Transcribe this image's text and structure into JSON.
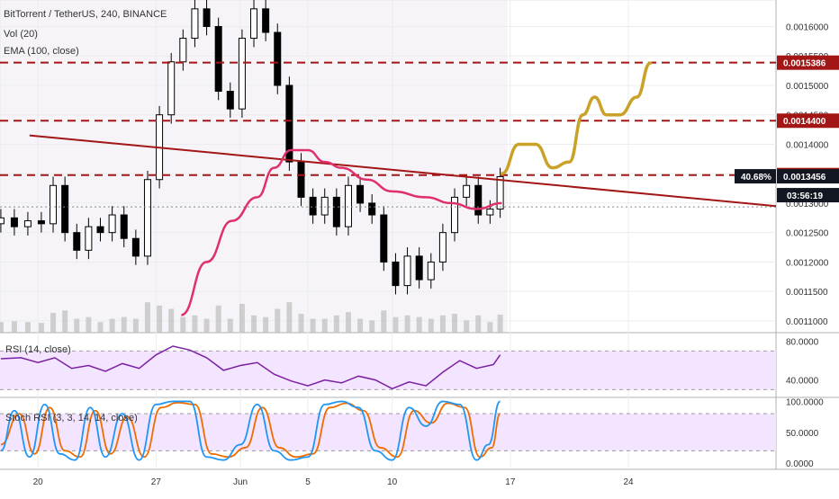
{
  "chart_data": {
    "type": "candlestick",
    "title": "BitTorrent / TetherUS, 240, BINANCE",
    "legend_lines": [
      "Vol (20)",
      "EMA (100, close)"
    ],
    "price_axis_ticks": [
      "0.0016000",
      "0.0015500",
      "0.0015000",
      "0.0014500",
      "0.0014000",
      "0.0013500",
      "0.0013000",
      "0.0012500",
      "0.0012000",
      "0.0011500",
      "0.0011000"
    ],
    "price_range": [
      0.00108,
      0.001645
    ],
    "price_markers": [
      {
        "label": "0.0015386",
        "value": 0.0015386,
        "style": "dark-red"
      },
      {
        "label": "0.0014400",
        "value": 0.00144,
        "style": "dark-red"
      },
      {
        "label": "0.0013477",
        "value": 0.0013477,
        "style": "dark-red"
      },
      {
        "label": "0.0013456",
        "value": 0.0013456,
        "style": "black"
      }
    ],
    "percent_badge": "40.68%",
    "countdown": "03:56:19",
    "x_axis_labels": [
      {
        "label": "20",
        "day": 20
      },
      {
        "label": "27",
        "day": 27
      },
      {
        "label": "Jun",
        "day": 32
      },
      {
        "label": "5",
        "day": 36
      },
      {
        "label": "10",
        "day": 41
      },
      {
        "label": "17",
        "day": 48
      },
      {
        "label": "24",
        "day": 55
      }
    ],
    "x_range_days": [
      17.75,
      63.75
    ],
    "last_candle_day": 47.4,
    "candles": [
      {
        "day": 17.8,
        "open": 0.001265,
        "close": 0.001275
      },
      {
        "day": 18.6,
        "open": 0.001275,
        "close": 0.00126
      },
      {
        "day": 19.4,
        "open": 0.00126,
        "close": 0.00127
      },
      {
        "day": 20.2,
        "open": 0.00127,
        "close": 0.001265
      },
      {
        "day": 20.9,
        "open": 0.001265,
        "close": 0.00133
      },
      {
        "day": 21.6,
        "open": 0.00133,
        "close": 0.00125
      },
      {
        "day": 22.3,
        "open": 0.00125,
        "close": 0.00122
      },
      {
        "day": 23.0,
        "open": 0.00122,
        "close": 0.00126
      },
      {
        "day": 23.7,
        "open": 0.00126,
        "close": 0.00125
      },
      {
        "day": 24.4,
        "open": 0.00125,
        "close": 0.00128
      },
      {
        "day": 25.1,
        "open": 0.00128,
        "close": 0.00124
      },
      {
        "day": 25.8,
        "open": 0.00124,
        "close": 0.00121
      },
      {
        "day": 26.5,
        "open": 0.00121,
        "close": 0.00134
      },
      {
        "day": 27.2,
        "open": 0.00134,
        "close": 0.00145
      },
      {
        "day": 27.9,
        "open": 0.00145,
        "close": 0.00154
      },
      {
        "day": 28.6,
        "open": 0.00154,
        "close": 0.00158
      },
      {
        "day": 29.3,
        "open": 0.00158,
        "close": 0.00163
      },
      {
        "day": 30.0,
        "open": 0.00163,
        "close": 0.0016
      },
      {
        "day": 30.7,
        "open": 0.0016,
        "close": 0.00149
      },
      {
        "day": 31.4,
        "open": 0.00149,
        "close": 0.00146
      },
      {
        "day": 32.1,
        "open": 0.00146,
        "close": 0.00158
      },
      {
        "day": 32.8,
        "open": 0.00158,
        "close": 0.00163
      },
      {
        "day": 33.5,
        "open": 0.00163,
        "close": 0.00159
      },
      {
        "day": 34.2,
        "open": 0.00159,
        "close": 0.0015
      },
      {
        "day": 34.9,
        "open": 0.0015,
        "close": 0.00137
      },
      {
        "day": 35.6,
        "open": 0.00137,
        "close": 0.00131
      },
      {
        "day": 36.3,
        "open": 0.00131,
        "close": 0.00128
      },
      {
        "day": 37.0,
        "open": 0.00128,
        "close": 0.00131
      },
      {
        "day": 37.7,
        "open": 0.00131,
        "close": 0.00126
      },
      {
        "day": 38.4,
        "open": 0.00126,
        "close": 0.00133
      },
      {
        "day": 39.1,
        "open": 0.00133,
        "close": 0.0013
      },
      {
        "day": 39.8,
        "open": 0.0013,
        "close": 0.00128
      },
      {
        "day": 40.5,
        "open": 0.00128,
        "close": 0.0012
      },
      {
        "day": 41.2,
        "open": 0.0012,
        "close": 0.00116
      },
      {
        "day": 41.9,
        "open": 0.00116,
        "close": 0.00121
      },
      {
        "day": 42.6,
        "open": 0.00121,
        "close": 0.00117
      },
      {
        "day": 43.3,
        "open": 0.00117,
        "close": 0.0012
      },
      {
        "day": 44.0,
        "open": 0.0012,
        "close": 0.00125
      },
      {
        "day": 44.7,
        "open": 0.00125,
        "close": 0.00131
      },
      {
        "day": 45.4,
        "open": 0.00131,
        "close": 0.00133
      },
      {
        "day": 46.1,
        "open": 0.00133,
        "close": 0.00128
      },
      {
        "day": 46.8,
        "open": 0.00128,
        "close": 0.00129
      },
      {
        "day": 47.4,
        "open": 0.00129,
        "close": 0.001345
      }
    ],
    "ema_line": [
      {
        "day": 28.5,
        "value": 0.00111
      },
      {
        "day": 30.0,
        "value": 0.0012
      },
      {
        "day": 31.5,
        "value": 0.00127
      },
      {
        "day": 33.0,
        "value": 0.00131
      },
      {
        "day": 34.0,
        "value": 0.00136
      },
      {
        "day": 35.0,
        "value": 0.00139
      },
      {
        "day": 36.0,
        "value": 0.00139
      },
      {
        "day": 37.0,
        "value": 0.00137
      },
      {
        "day": 38.0,
        "value": 0.00136
      },
      {
        "day": 39.5,
        "value": 0.00134
      },
      {
        "day": 41.0,
        "value": 0.00132
      },
      {
        "day": 43.0,
        "value": 0.00131
      },
      {
        "day": 44.5,
        "value": 0.0013
      },
      {
        "day": 46.0,
        "value": 0.00129
      },
      {
        "day": 47.5,
        "value": 0.0013
      }
    ],
    "trendline": {
      "start": {
        "day": 19.5,
        "value": 0.001415
      },
      "end": {
        "day": 63.75,
        "value": 0.001295
      }
    },
    "projection_path": [
      {
        "day": 47.5,
        "value": 0.00135
      },
      {
        "day": 48.5,
        "value": 0.0014
      },
      {
        "day": 49.5,
        "value": 0.0014
      },
      {
        "day": 50.5,
        "value": 0.00136
      },
      {
        "day": 51.5,
        "value": 0.00137
      },
      {
        "day": 52.3,
        "value": 0.00145
      },
      {
        "day": 53.0,
        "value": 0.00148
      },
      {
        "day": 53.7,
        "value": 0.00145
      },
      {
        "day": 54.5,
        "value": 0.00145
      },
      {
        "day": 55.5,
        "value": 0.00148
      },
      {
        "day": 56.3,
        "value": 0.001538
      }
    ],
    "rsi": {
      "label": "RSI (14, close)",
      "ticks": [
        "80.0000",
        "40.0000"
      ],
      "range": [
        22,
        88
      ],
      "bands": [
        70,
        30
      ],
      "values": [
        {
          "day": 17.8,
          "value": 62
        },
        {
          "day": 19.0,
          "value": 63
        },
        {
          "day": 20.0,
          "value": 58
        },
        {
          "day": 21.0,
          "value": 63
        },
        {
          "day": 22.0,
          "value": 52
        },
        {
          "day": 23.0,
          "value": 55
        },
        {
          "day": 24.0,
          "value": 49
        },
        {
          "day": 25.0,
          "value": 57
        },
        {
          "day": 26.0,
          "value": 52
        },
        {
          "day": 27.0,
          "value": 66
        },
        {
          "day": 28.0,
          "value": 75
        },
        {
          "day": 29.0,
          "value": 71
        },
        {
          "day": 30.0,
          "value": 63
        },
        {
          "day": 31.0,
          "value": 50
        },
        {
          "day": 32.0,
          "value": 55
        },
        {
          "day": 33.0,
          "value": 58
        },
        {
          "day": 34.0,
          "value": 46
        },
        {
          "day": 35.0,
          "value": 39
        },
        {
          "day": 36.0,
          "value": 34
        },
        {
          "day": 37.0,
          "value": 40
        },
        {
          "day": 38.0,
          "value": 37
        },
        {
          "day": 39.0,
          "value": 44
        },
        {
          "day": 40.0,
          "value": 40
        },
        {
          "day": 41.0,
          "value": 31
        },
        {
          "day": 42.0,
          "value": 38
        },
        {
          "day": 43.0,
          "value": 34
        },
        {
          "day": 44.0,
          "value": 48
        },
        {
          "day": 45.0,
          "value": 60
        },
        {
          "day": 46.0,
          "value": 52
        },
        {
          "day": 47.0,
          "value": 56
        },
        {
          "day": 47.4,
          "value": 66
        }
      ]
    },
    "stoch_rsi": {
      "label": "Stoch RSI (3, 3, 14, 14, close)",
      "ticks": [
        "100.0000",
        "50.0000",
        "0.0000"
      ],
      "range": [
        -10,
        105
      ],
      "bands": [
        80,
        20
      ],
      "k_values": [
        {
          "day": 17.8,
          "value": 20
        },
        {
          "day": 18.6,
          "value": 85
        },
        {
          "day": 19.5,
          "value": 10
        },
        {
          "day": 20.4,
          "value": 95
        },
        {
          "day": 21.3,
          "value": 15
        },
        {
          "day": 22.2,
          "value": 5
        },
        {
          "day": 23.1,
          "value": 90
        },
        {
          "day": 24.0,
          "value": 10
        },
        {
          "day": 25.0,
          "value": 80
        },
        {
          "day": 26.0,
          "value": 5
        },
        {
          "day": 27.0,
          "value": 95
        },
        {
          "day": 28.0,
          "value": 100
        },
        {
          "day": 29.0,
          "value": 100
        },
        {
          "day": 30.0,
          "value": 10
        },
        {
          "day": 31.0,
          "value": 5
        },
        {
          "day": 32.0,
          "value": 30
        },
        {
          "day": 33.0,
          "value": 95
        },
        {
          "day": 34.0,
          "value": 20
        },
        {
          "day": 35.0,
          "value": 5
        },
        {
          "day": 36.0,
          "value": 10
        },
        {
          "day": 37.0,
          "value": 95
        },
        {
          "day": 38.0,
          "value": 100
        },
        {
          "day": 39.0,
          "value": 90
        },
        {
          "day": 40.0,
          "value": 20
        },
        {
          "day": 41.0,
          "value": 5
        },
        {
          "day": 42.0,
          "value": 90
        },
        {
          "day": 43.0,
          "value": 60
        },
        {
          "day": 44.0,
          "value": 100
        },
        {
          "day": 45.0,
          "value": 95
        },
        {
          "day": 46.0,
          "value": 5
        },
        {
          "day": 46.7,
          "value": 30
        },
        {
          "day": 47.4,
          "value": 100
        }
      ],
      "d_values": [
        {
          "day": 17.8,
          "value": 30
        },
        {
          "day": 18.9,
          "value": 80
        },
        {
          "day": 19.8,
          "value": 15
        },
        {
          "day": 20.7,
          "value": 90
        },
        {
          "day": 21.6,
          "value": 20
        },
        {
          "day": 22.5,
          "value": 10
        },
        {
          "day": 23.4,
          "value": 85
        },
        {
          "day": 24.3,
          "value": 15
        },
        {
          "day": 25.3,
          "value": 75
        },
        {
          "day": 26.3,
          "value": 10
        },
        {
          "day": 27.3,
          "value": 90
        },
        {
          "day": 28.3,
          "value": 98
        },
        {
          "day": 29.3,
          "value": 95
        },
        {
          "day": 30.3,
          "value": 15
        },
        {
          "day": 31.3,
          "value": 10
        },
        {
          "day": 32.3,
          "value": 25
        },
        {
          "day": 33.3,
          "value": 90
        },
        {
          "day": 34.3,
          "value": 25
        },
        {
          "day": 35.3,
          "value": 10
        },
        {
          "day": 36.3,
          "value": 15
        },
        {
          "day": 37.3,
          "value": 90
        },
        {
          "day": 38.3,
          "value": 97
        },
        {
          "day": 39.3,
          "value": 85
        },
        {
          "day": 40.3,
          "value": 25
        },
        {
          "day": 41.3,
          "value": 10
        },
        {
          "day": 42.3,
          "value": 85
        },
        {
          "day": 43.3,
          "value": 65
        },
        {
          "day": 44.3,
          "value": 97
        },
        {
          "day": 45.3,
          "value": 90
        },
        {
          "day": 46.2,
          "value": 10
        },
        {
          "day": 46.9,
          "value": 25
        },
        {
          "day": 47.4,
          "value": 80
        }
      ]
    }
  },
  "colors": {
    "bull": "#ffffff",
    "bear": "#000000",
    "ema": "#e0306b",
    "trendline": "#a31616",
    "projection": "#c9a227",
    "level_line": "#a31616",
    "rsi_line": "#7b1fa2",
    "stoch_k": "#2196f3",
    "stoch_d": "#ef6c00",
    "panel_fill": "#f3e5ff"
  }
}
